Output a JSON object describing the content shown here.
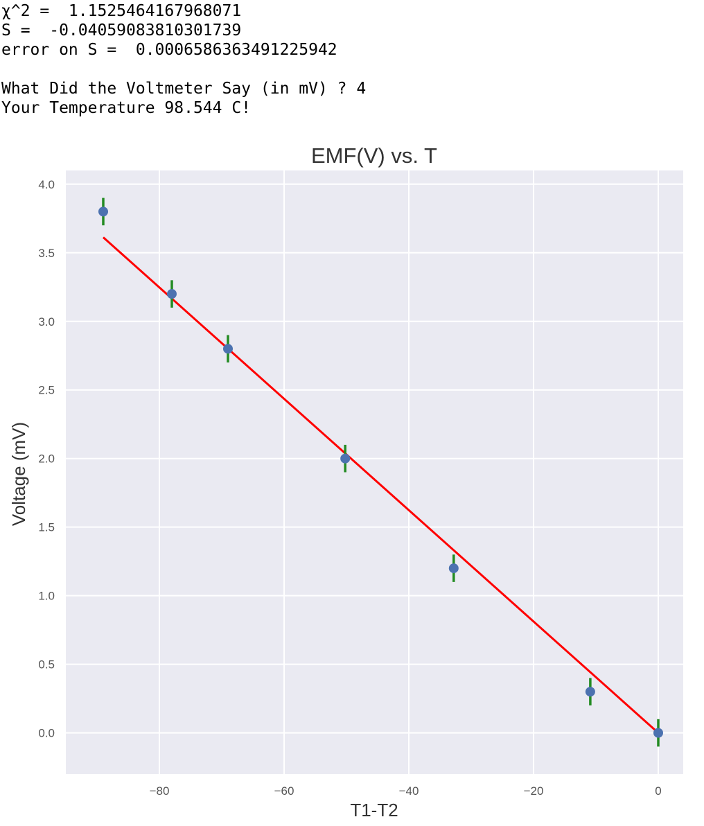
{
  "console": {
    "lines": [
      "χ^2 =  1.1525464167968071",
      "S =  -0.04059083810301739",
      "error on S =  0.0006586363491225942",
      "",
      "What Did the Voltmeter Say (in mV) ? 4",
      "Your Temperature 98.544 C!"
    ]
  },
  "chart_data": {
    "type": "scatter",
    "title": "EMF(V) vs. T",
    "xlabel": "T1-T2",
    "ylabel": "Voltage (mV)",
    "xlim": [
      -95,
      4
    ],
    "ylim": [
      -0.3,
      4.1
    ],
    "xticks": [
      -80,
      -60,
      -40,
      -20,
      0
    ],
    "xtick_labels": [
      "−80",
      "−60",
      "−40",
      "−20",
      "0"
    ],
    "yticks": [
      0.0,
      0.5,
      1.0,
      1.5,
      2.0,
      2.5,
      3.0,
      3.5,
      4.0
    ],
    "ytick_labels": [
      "0.0",
      "0.5",
      "1.0",
      "1.5",
      "2.0",
      "2.5",
      "3.0",
      "3.5",
      "4.0"
    ],
    "grid": true,
    "background": "#eaeaf2",
    "series": [
      {
        "kind": "errorbar",
        "color": "#4c72b0",
        "error_color": "#228b22",
        "x": [
          -89,
          -78,
          -69,
          -50.2,
          -32.8,
          -10.9,
          0
        ],
        "y": [
          3.8,
          3.2,
          2.8,
          2.0,
          1.2,
          0.3,
          0.0
        ],
        "yerr": [
          0.1,
          0.1,
          0.1,
          0.1,
          0.1,
          0.1,
          0.1
        ]
      },
      {
        "kind": "fit-line",
        "color": "#ff0000",
        "slope": -0.04059083810301739,
        "x_range": [
          -89,
          0
        ]
      }
    ]
  }
}
